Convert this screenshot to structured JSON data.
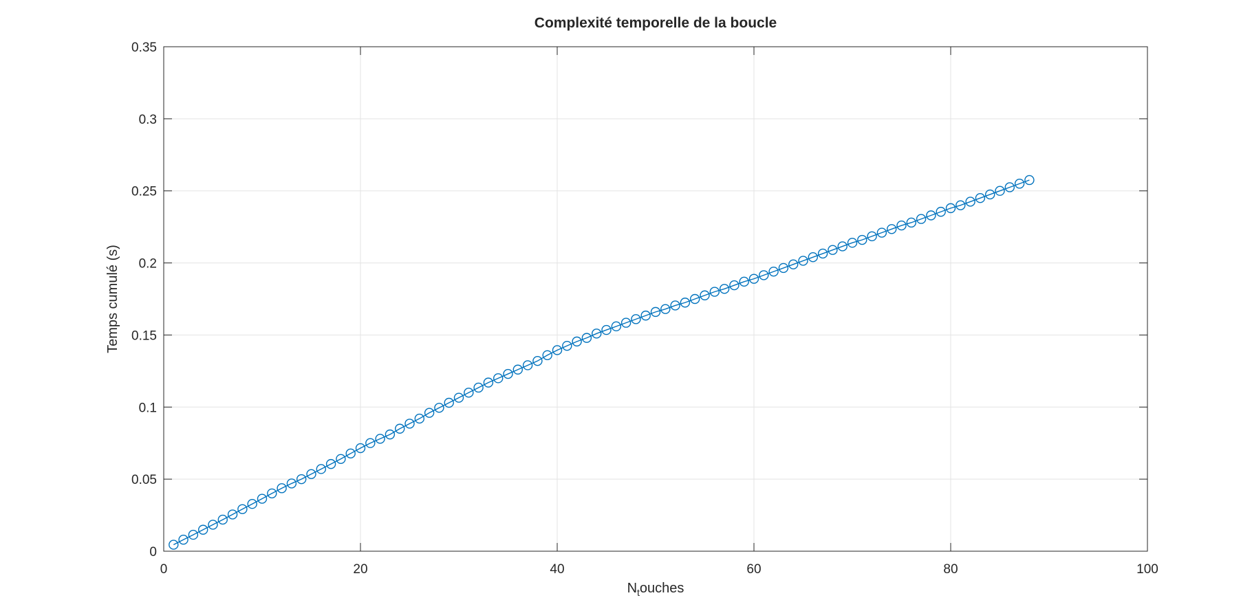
{
  "chart_data": {
    "type": "scatter",
    "title": "Complexité temporelle de la boucle",
    "xlabel_main": "N",
    "xlabel_sub": "t",
    "xlabel_rest": "ouches",
    "ylabel": "Temps cumulé (s)",
    "xlim": [
      0,
      100
    ],
    "ylim": [
      0,
      0.35
    ],
    "x_ticks": [
      0,
      20,
      40,
      60,
      80,
      100
    ],
    "y_ticks": [
      0,
      0.05,
      0.1,
      0.15,
      0.2,
      0.25,
      0.3,
      0.35
    ],
    "x_tick_labels": [
      "0",
      "20",
      "40",
      "60",
      "80",
      "100"
    ],
    "y_tick_labels": [
      "0",
      "0.05",
      "0.1",
      "0.15",
      "0.2",
      "0.25",
      "0.3",
      "0.35"
    ],
    "grid": true,
    "marker": "circle-open",
    "line": "solid",
    "color": "#0072BD",
    "series": [
      {
        "x": [
          1,
          2,
          3,
          4,
          5,
          6,
          7,
          8,
          9,
          10,
          11,
          12,
          13,
          14,
          15,
          16,
          17,
          18,
          19,
          20,
          21,
          22,
          23,
          24,
          25,
          26,
          27,
          28,
          29,
          30,
          31,
          32,
          33,
          34,
          35,
          36,
          37,
          38,
          39,
          40,
          41,
          42,
          43,
          44,
          45,
          46,
          47,
          48,
          49,
          50,
          51,
          52,
          53,
          54,
          55,
          56,
          57,
          58,
          59,
          60,
          61,
          62,
          63,
          64,
          65,
          66,
          67,
          68,
          69,
          70,
          71,
          72,
          73,
          74,
          75,
          76,
          77,
          78,
          79,
          80,
          81,
          82,
          83,
          84,
          85,
          86,
          87,
          88
        ],
        "y": [
          0.0045,
          0.008,
          0.0114,
          0.0149,
          0.0184,
          0.0219,
          0.0255,
          0.0292,
          0.0328,
          0.0364,
          0.0401,
          0.0437,
          0.047,
          0.05,
          0.0535,
          0.057,
          0.0605,
          0.064,
          0.0678,
          0.0715,
          0.075,
          0.078,
          0.081,
          0.085,
          0.0885,
          0.092,
          0.096,
          0.0995,
          0.103,
          0.1065,
          0.11,
          0.1135,
          0.117,
          0.12,
          0.123,
          0.126,
          0.129,
          0.132,
          0.136,
          0.1395,
          0.1425,
          0.1455,
          0.148,
          0.151,
          0.1535,
          0.156,
          0.1585,
          0.161,
          0.1635,
          0.166,
          0.168,
          0.1705,
          0.1725,
          0.175,
          0.1775,
          0.18,
          0.182,
          0.1845,
          0.187,
          0.189,
          0.1915,
          0.194,
          0.1965,
          0.199,
          0.2015,
          0.204,
          0.2065,
          0.209,
          0.2115,
          0.214,
          0.216,
          0.2185,
          0.221,
          0.2235,
          0.226,
          0.228,
          0.2305,
          0.233,
          0.2355,
          0.238,
          0.24,
          0.2425,
          0.245,
          0.2475,
          0.25,
          0.2525,
          0.255,
          0.2575
        ]
      }
    ]
  }
}
